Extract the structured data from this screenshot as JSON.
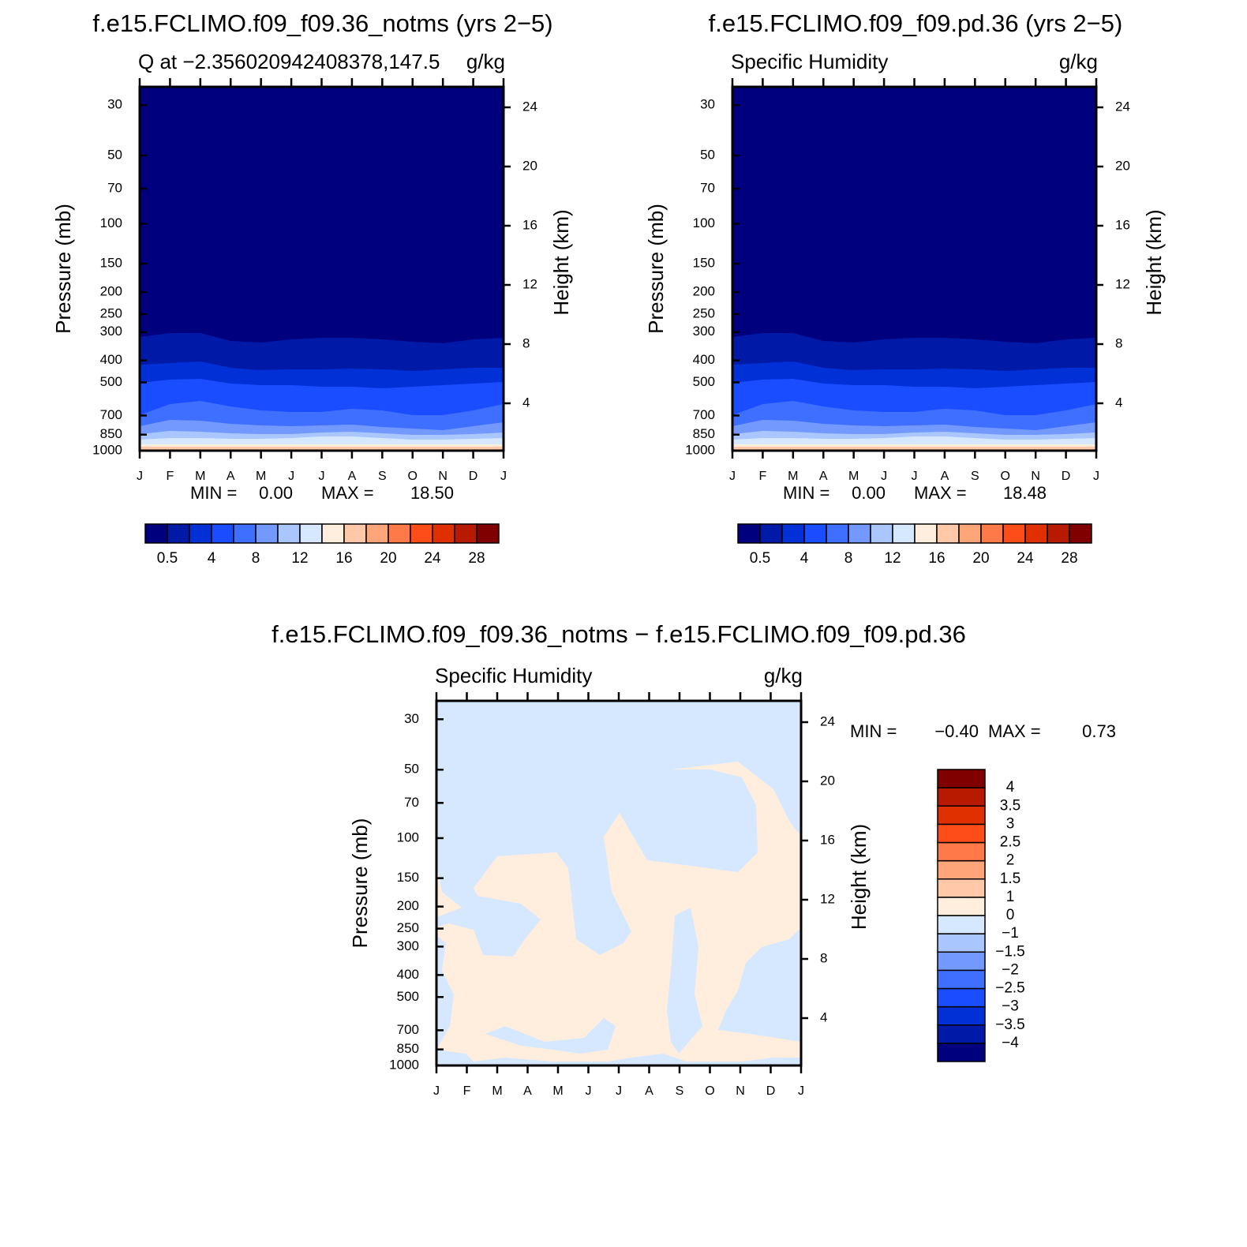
{
  "panels": [
    {
      "title": "f.e15.FCLIMO.f09_f09.36_notms (yrs 2−5)",
      "subtitle_left": "Q at −2.356020942408378,147.5",
      "subtitle_right": "g/kg",
      "y_label": "Pressure (mb)",
      "y2_label": "Height (km)",
      "yticks": [
        30,
        50,
        70,
        100,
        150,
        200,
        250,
        300,
        400,
        500,
        700,
        850,
        1000
      ],
      "y2ticks": [
        24,
        20,
        16,
        12,
        8,
        4
      ],
      "xticks": [
        "J",
        "F",
        "M",
        "A",
        "M",
        "J",
        "J",
        "A",
        "S",
        "O",
        "N",
        "D",
        "J"
      ],
      "min_label": "MIN =",
      "min_value": "0.00",
      "max_label": "MAX =",
      "max_value": "18.50",
      "colorbar": {
        "colors": [
          "#00007f",
          "#0019a6",
          "#0030d6",
          "#1a4dff",
          "#3f6fff",
          "#7399ff",
          "#aac6ff",
          "#d6e8ff",
          "#ffeedd",
          "#ffc8a8",
          "#ffa57a",
          "#ff7a48",
          "#ff4d1a",
          "#e03000",
          "#b81a00",
          "#800000"
        ],
        "labels": [
          "0.5",
          "4",
          "8",
          "12",
          "16",
          "20",
          "24",
          "28"
        ]
      }
    },
    {
      "title": "f.e15.FCLIMO.f09_f09.pd.36 (yrs 2−5)",
      "subtitle_left": "Specific Humidity",
      "subtitle_right": "g/kg",
      "y_label": "Pressure (mb)",
      "y2_label": "Height (km)",
      "yticks": [
        30,
        50,
        70,
        100,
        150,
        200,
        250,
        300,
        400,
        500,
        700,
        850,
        1000
      ],
      "y2ticks": [
        24,
        20,
        16,
        12,
        8,
        4
      ],
      "xticks": [
        "J",
        "F",
        "M",
        "A",
        "M",
        "J",
        "J",
        "A",
        "S",
        "O",
        "N",
        "D",
        "J"
      ],
      "min_label": "MIN =",
      "min_value": "0.00",
      "max_label": "MAX =",
      "max_value": "18.48",
      "colorbar": {
        "colors": [
          "#00007f",
          "#0019a6",
          "#0030d6",
          "#1a4dff",
          "#3f6fff",
          "#7399ff",
          "#aac6ff",
          "#d6e8ff",
          "#ffeedd",
          "#ffc8a8",
          "#ffa57a",
          "#ff7a48",
          "#ff4d1a",
          "#e03000",
          "#b81a00",
          "#800000"
        ],
        "labels": [
          "0.5",
          "4",
          "8",
          "12",
          "16",
          "20",
          "24",
          "28"
        ]
      }
    },
    {
      "title": "f.e15.FCLIMO.f09_f09.36_notms − f.e15.FCLIMO.f09_f09.pd.36",
      "subtitle_left": "Specific Humidity",
      "subtitle_right": "g/kg",
      "y_label": "Pressure (mb)",
      "y2_label": "Height (km)",
      "yticks": [
        30,
        50,
        70,
        100,
        150,
        200,
        250,
        300,
        400,
        500,
        700,
        850,
        1000
      ],
      "y2ticks": [
        24,
        20,
        16,
        12,
        8,
        4
      ],
      "xticks": [
        "J",
        "F",
        "M",
        "A",
        "M",
        "J",
        "J",
        "A",
        "S",
        "O",
        "N",
        "D",
        "J"
      ],
      "min_label": "MIN =",
      "min_value": "−0.40",
      "max_label": "MAX =",
      "max_value": "0.73",
      "colorbar": {
        "colors": [
          "#00007f",
          "#0019a6",
          "#0030d6",
          "#1a4dff",
          "#3f6fff",
          "#7399ff",
          "#aac6ff",
          "#d6e8ff",
          "#ffeedd",
          "#ffc8a8",
          "#ffa57a",
          "#ff7a48",
          "#ff4d1a",
          "#e03000",
          "#b81a00",
          "#800000"
        ],
        "labels": [
          "−4",
          "−3.5",
          "−3",
          "−2.5",
          "−2",
          "−1.5",
          "−1",
          "0",
          "1",
          "1.5",
          "2",
          "2.5",
          "3",
          "3.5",
          "4"
        ]
      }
    }
  ]
}
